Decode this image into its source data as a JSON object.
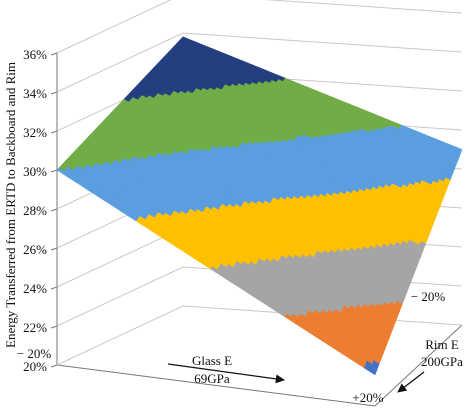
{
  "chart_data": {
    "type": "surface",
    "ylabel": "Energy Transferred from ERTD to Backboard and Rim",
    "xlabel": [
      "Glass E",
      "69GPa"
    ],
    "zlabel": [
      "Rim E",
      "200GPa"
    ],
    "x_categories": [
      "− 20%",
      null
    ],
    "z_categories": [
      "+20%",
      "− 20%"
    ],
    "values": [
      [
        30,
        33.8
      ],
      [
        21.6,
        29
      ]
    ],
    "ylim": [
      20,
      36
    ],
    "yticks": [
      {
        "value": 20,
        "label": "20%"
      },
      {
        "value": 22,
        "label": "22%"
      },
      {
        "value": 24,
        "label": "24%"
      },
      {
        "value": 26,
        "label": "26%"
      },
      {
        "value": 28,
        "label": "28%"
      },
      {
        "value": 30,
        "label": "30%"
      },
      {
        "value": 32,
        "label": "32%"
      },
      {
        "value": 34,
        "label": "34%"
      },
      {
        "value": 36,
        "label": "36%"
      }
    ],
    "band_colors": [
      "#4472c4",
      "#ed7d31",
      "#a5a5a5",
      "#ffc000",
      "#5b9ee0",
      "#70ad47",
      "#233f7f",
      "#1a2f5e"
    ],
    "grid": true
  }
}
